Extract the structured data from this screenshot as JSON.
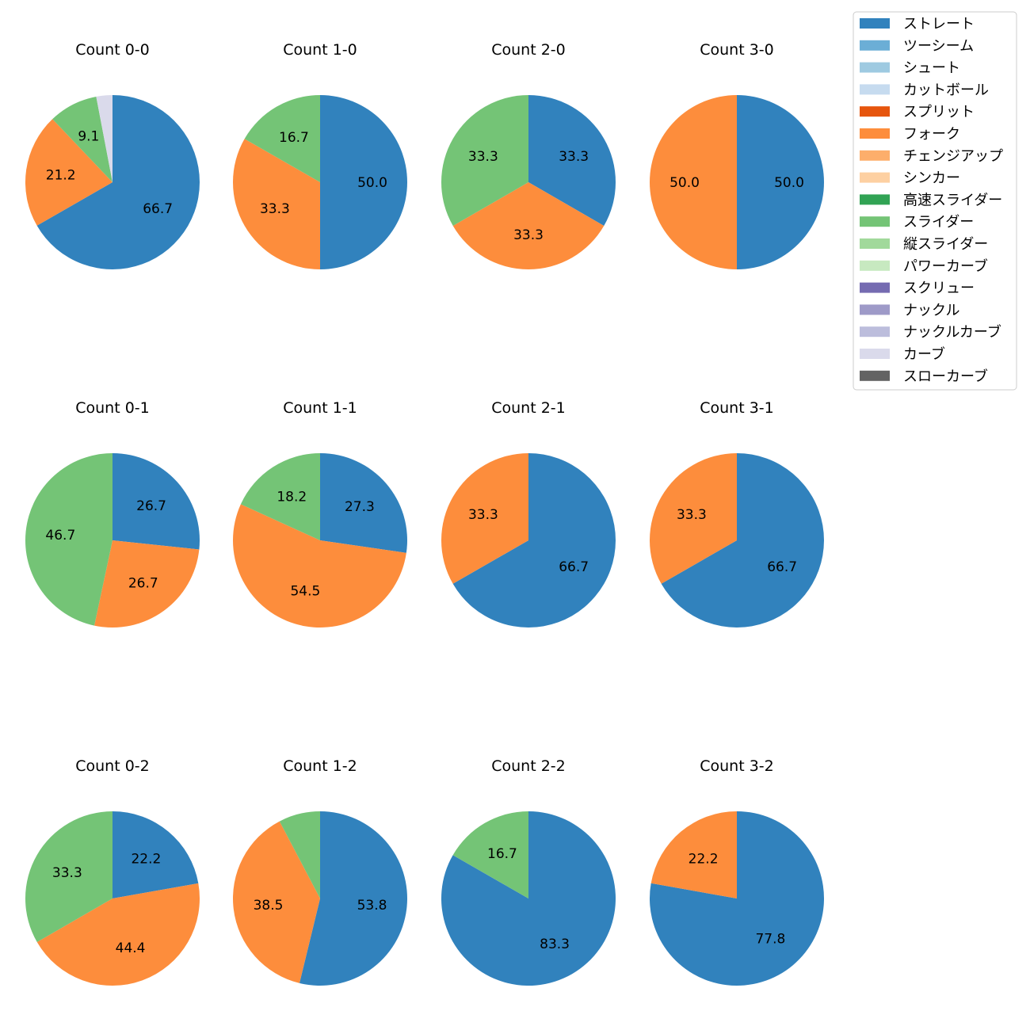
{
  "chart_data": {
    "type": "pie",
    "legend": {
      "placement": "top-right",
      "entries": [
        {
          "name": "ストレート",
          "color": "#3182bd"
        },
        {
          "name": "ツーシーム",
          "color": "#6baed6"
        },
        {
          "name": "シュート",
          "color": "#9ecae1"
        },
        {
          "name": "カットボール",
          "color": "#c6dbef"
        },
        {
          "name": "スプリット",
          "color": "#e6550d"
        },
        {
          "name": "フォーク",
          "color": "#fd8d3c"
        },
        {
          "name": "チェンジアップ",
          "color": "#fdae6b"
        },
        {
          "name": "シンカー",
          "color": "#fdd0a2"
        },
        {
          "name": "高速スライダー",
          "color": "#31a354"
        },
        {
          "name": "スライダー",
          "color": "#74c476"
        },
        {
          "name": "縦スライダー",
          "color": "#a1d99b"
        },
        {
          "name": "パワーカーブ",
          "color": "#c7e9c0"
        },
        {
          "name": "スクリュー",
          "color": "#756bb1"
        },
        {
          "name": "ナックル",
          "color": "#9e9ac8"
        },
        {
          "name": "ナックルカーブ",
          "color": "#bcbddc"
        },
        {
          "name": "カーブ",
          "color": "#dadaeb"
        },
        {
          "name": "スローカーブ",
          "color": "#636363"
        }
      ]
    },
    "pies": [
      {
        "title": "Count 0-0",
        "slices": [
          {
            "pitch": "ストレート",
            "value": 66.7,
            "label": "66.7"
          },
          {
            "pitch": "フォーク",
            "value": 21.2,
            "label": "21.2"
          },
          {
            "pitch": "スライダー",
            "value": 9.1,
            "label": "9.1"
          },
          {
            "pitch": "カーブ",
            "value": 3.0,
            "label": ""
          }
        ]
      },
      {
        "title": "Count 1-0",
        "slices": [
          {
            "pitch": "ストレート",
            "value": 50.0,
            "label": "50.0"
          },
          {
            "pitch": "フォーク",
            "value": 33.3,
            "label": "33.3"
          },
          {
            "pitch": "スライダー",
            "value": 16.7,
            "label": "16.7"
          }
        ]
      },
      {
        "title": "Count 2-0",
        "slices": [
          {
            "pitch": "ストレート",
            "value": 33.3,
            "label": "33.3"
          },
          {
            "pitch": "フォーク",
            "value": 33.3,
            "label": "33.3"
          },
          {
            "pitch": "スライダー",
            "value": 33.3,
            "label": "33.3"
          }
        ]
      },
      {
        "title": "Count 3-0",
        "slices": [
          {
            "pitch": "ストレート",
            "value": 50.0,
            "label": "50.0"
          },
          {
            "pitch": "フォーク",
            "value": 50.0,
            "label": "50.0"
          }
        ]
      },
      {
        "title": "Count 0-1",
        "slices": [
          {
            "pitch": "ストレート",
            "value": 26.7,
            "label": "26.7"
          },
          {
            "pitch": "フォーク",
            "value": 26.7,
            "label": "26.7"
          },
          {
            "pitch": "スライダー",
            "value": 46.7,
            "label": "46.7"
          }
        ]
      },
      {
        "title": "Count 1-1",
        "slices": [
          {
            "pitch": "ストレート",
            "value": 27.3,
            "label": "27.3"
          },
          {
            "pitch": "フォーク",
            "value": 54.5,
            "label": "54.5"
          },
          {
            "pitch": "スライダー",
            "value": 18.2,
            "label": "18.2"
          }
        ]
      },
      {
        "title": "Count 2-1",
        "slices": [
          {
            "pitch": "ストレート",
            "value": 66.7,
            "label": "66.7"
          },
          {
            "pitch": "フォーク",
            "value": 33.3,
            "label": "33.3"
          }
        ]
      },
      {
        "title": "Count 3-1",
        "slices": [
          {
            "pitch": "ストレート",
            "value": 66.7,
            "label": "66.7"
          },
          {
            "pitch": "フォーク",
            "value": 33.3,
            "label": "33.3"
          }
        ]
      },
      {
        "title": "Count 0-2",
        "slices": [
          {
            "pitch": "ストレート",
            "value": 22.2,
            "label": "22.2"
          },
          {
            "pitch": "フォーク",
            "value": 44.4,
            "label": "44.4"
          },
          {
            "pitch": "スライダー",
            "value": 33.3,
            "label": "33.3"
          }
        ]
      },
      {
        "title": "Count 1-2",
        "slices": [
          {
            "pitch": "ストレート",
            "value": 53.8,
            "label": "53.8"
          },
          {
            "pitch": "フォーク",
            "value": 38.5,
            "label": "38.5"
          },
          {
            "pitch": "スライダー",
            "value": 7.7,
            "label": ""
          }
        ]
      },
      {
        "title": "Count 2-2",
        "slices": [
          {
            "pitch": "ストレート",
            "value": 83.3,
            "label": "83.3"
          },
          {
            "pitch": "スライダー",
            "value": 16.7,
            "label": "16.7"
          }
        ]
      },
      {
        "title": "Count 3-2",
        "slices": [
          {
            "pitch": "ストレート",
            "value": 77.8,
            "label": "77.8"
          },
          {
            "pitch": "フォーク",
            "value": 22.2,
            "label": "22.2"
          }
        ]
      }
    ]
  }
}
